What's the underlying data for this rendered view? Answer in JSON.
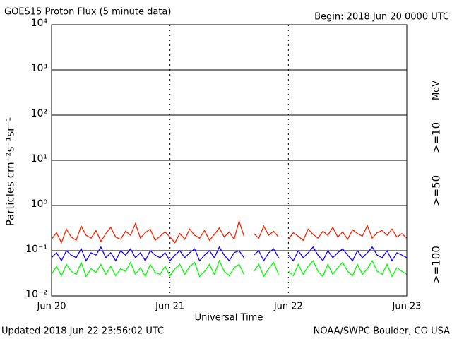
{
  "chart_data": {
    "type": "line",
    "title": "GOES15 Proton Flux (5 minute data)",
    "subtitle": "Begin: 2018 Jun 20 0000 UTC",
    "x_label": "Universal Time",
    "y_label": "Particles cm⁻²s⁻¹sr⁻¹",
    "legend_title": "MeV",
    "footer_left": "Updated 2018 Jun 22 23:56:02 UTC",
    "footer_right": "NOAA/SWPC Boulder, CO USA",
    "log_scale": true,
    "grid": true,
    "legend_position": "right",
    "xlim": [
      "2018-06-20T00:00",
      "2018-06-23T00:00"
    ],
    "xticks": [
      {
        "value": "2018-06-20T00:00",
        "label": "Jun 20"
      },
      {
        "value": "2018-06-21T00:00",
        "label": "Jun 21"
      },
      {
        "value": "2018-06-22T00:00",
        "label": "Jun 22"
      },
      {
        "value": "2018-06-23T00:00",
        "label": "Jun 23"
      }
    ],
    "ylim": [
      0.01,
      10000
    ],
    "yticks": [
      {
        "value": 0.01,
        "label": "10⁻²"
      },
      {
        "value": 0.1,
        "label": "10⁻¹"
      },
      {
        "value": 1,
        "label": "10⁰"
      },
      {
        "value": 10,
        "label": "10¹"
      },
      {
        "value": 100,
        "label": "10²"
      },
      {
        "value": 1000,
        "label": "10³"
      },
      {
        "value": 10000,
        "label": "10⁴"
      }
    ],
    "x": [
      "2018-06-20T00:00",
      "2018-06-20T01:00",
      "2018-06-20T02:00",
      "2018-06-20T03:00",
      "2018-06-20T04:00",
      "2018-06-20T05:00",
      "2018-06-20T06:00",
      "2018-06-20T07:00",
      "2018-06-20T08:00",
      "2018-06-20T09:00",
      "2018-06-20T10:00",
      "2018-06-20T11:00",
      "2018-06-20T12:00",
      "2018-06-20T13:00",
      "2018-06-20T14:00",
      "2018-06-20T15:00",
      "2018-06-20T16:00",
      "2018-06-20T17:00",
      "2018-06-20T18:00",
      "2018-06-20T19:00",
      "2018-06-20T20:00",
      "2018-06-20T21:00",
      "2018-06-20T22:00",
      "2018-06-20T23:00",
      "2018-06-21T00:00",
      "2018-06-21T01:00",
      "2018-06-21T02:00",
      "2018-06-21T03:00",
      "2018-06-21T04:00",
      "2018-06-21T05:00",
      "2018-06-21T06:00",
      "2018-06-21T07:00",
      "2018-06-21T08:00",
      "2018-06-21T09:00",
      "2018-06-21T10:00",
      "2018-06-21T11:00",
      "2018-06-21T12:00",
      "2018-06-21T13:00",
      "2018-06-21T14:00",
      "2018-06-21T15:00",
      "2018-06-21T16:00",
      "2018-06-21T17:00",
      "2018-06-21T18:00",
      "2018-06-21T19:00",
      "2018-06-21T20:00",
      "2018-06-21T21:00",
      "2018-06-21T22:00",
      "2018-06-21T23:00",
      "2018-06-22T00:00",
      "2018-06-22T01:00",
      "2018-06-22T02:00",
      "2018-06-22T03:00",
      "2018-06-22T04:00",
      "2018-06-22T05:00",
      "2018-06-22T06:00",
      "2018-06-22T07:00",
      "2018-06-22T08:00",
      "2018-06-22T09:00",
      "2018-06-22T10:00",
      "2018-06-22T11:00",
      "2018-06-22T12:00",
      "2018-06-22T13:00",
      "2018-06-22T14:00",
      "2018-06-22T15:00",
      "2018-06-22T16:00",
      "2018-06-22T17:00",
      "2018-06-22T18:00",
      "2018-06-22T19:00",
      "2018-06-22T20:00",
      "2018-06-22T21:00",
      "2018-06-22T22:00",
      "2018-06-22T23:00",
      "2018-06-23T00:00"
    ],
    "series": [
      {
        "name": ">=10",
        "color": "#ff2000",
        "values": [
          0.18,
          0.25,
          0.15,
          0.3,
          0.2,
          0.17,
          0.35,
          0.22,
          0.19,
          0.28,
          0.16,
          0.24,
          0.33,
          0.2,
          0.18,
          0.27,
          0.22,
          0.4,
          0.19,
          0.25,
          0.3,
          0.17,
          0.21,
          0.26,
          0.2,
          0.15,
          0.24,
          0.18,
          0.3,
          0.22,
          0.19,
          0.28,
          0.17,
          0.23,
          0.32,
          0.2,
          0.26,
          0.18,
          0.45,
          0.21,
          null,
          0.24,
          0.19,
          0.35,
          0.22,
          0.27,
          0.2,
          null,
          0.18,
          0.25,
          0.21,
          0.17,
          0.3,
          0.23,
          0.19,
          0.27,
          0.22,
          0.33,
          0.2,
          0.26,
          0.18,
          0.29,
          0.24,
          0.21,
          0.36,
          0.19,
          0.25,
          0.28,
          0.22,
          0.3,
          0.2,
          0.24,
          0.19
        ]
      },
      {
        "name": ">=50",
        "color": "#1a00ff",
        "values": [
          0.07,
          0.09,
          0.06,
          0.1,
          0.08,
          0.07,
          0.11,
          0.06,
          0.09,
          0.08,
          0.12,
          0.07,
          0.09,
          0.06,
          0.1,
          0.08,
          0.11,
          0.07,
          0.09,
          0.06,
          0.1,
          0.08,
          0.07,
          0.09,
          0.06,
          0.08,
          0.1,
          0.07,
          0.09,
          0.11,
          0.06,
          0.08,
          0.1,
          0.07,
          0.12,
          0.08,
          0.06,
          0.09,
          0.1,
          0.07,
          null,
          0.08,
          0.1,
          0.06,
          0.09,
          0.11,
          0.07,
          null,
          0.08,
          0.06,
          0.1,
          0.07,
          0.09,
          0.12,
          0.08,
          0.06,
          0.1,
          0.07,
          0.09,
          0.11,
          0.08,
          0.06,
          0.1,
          0.07,
          0.09,
          0.12,
          0.08,
          0.07,
          0.1,
          0.06,
          0.09,
          0.08,
          0.07
        ]
      },
      {
        "name": ">=100",
        "color": "#00ff00",
        "values": [
          0.03,
          0.045,
          0.028,
          0.05,
          0.035,
          0.03,
          0.055,
          0.027,
          0.04,
          0.033,
          0.05,
          0.03,
          0.045,
          0.028,
          0.04,
          0.035,
          0.055,
          0.03,
          0.042,
          0.027,
          0.05,
          0.033,
          0.03,
          0.045,
          0.028,
          0.04,
          0.05,
          0.03,
          0.045,
          0.055,
          0.027,
          0.035,
          0.05,
          0.03,
          0.06,
          0.035,
          0.028,
          0.042,
          0.05,
          0.03,
          null,
          0.035,
          0.05,
          0.027,
          0.04,
          0.055,
          0.03,
          null,
          0.035,
          0.028,
          0.05,
          0.03,
          0.045,
          0.06,
          0.035,
          0.027,
          0.05,
          0.03,
          0.042,
          0.055,
          0.035,
          0.028,
          0.05,
          0.03,
          0.04,
          0.06,
          0.035,
          0.03,
          0.05,
          0.027,
          0.042,
          0.035,
          0.03
        ]
      }
    ]
  }
}
